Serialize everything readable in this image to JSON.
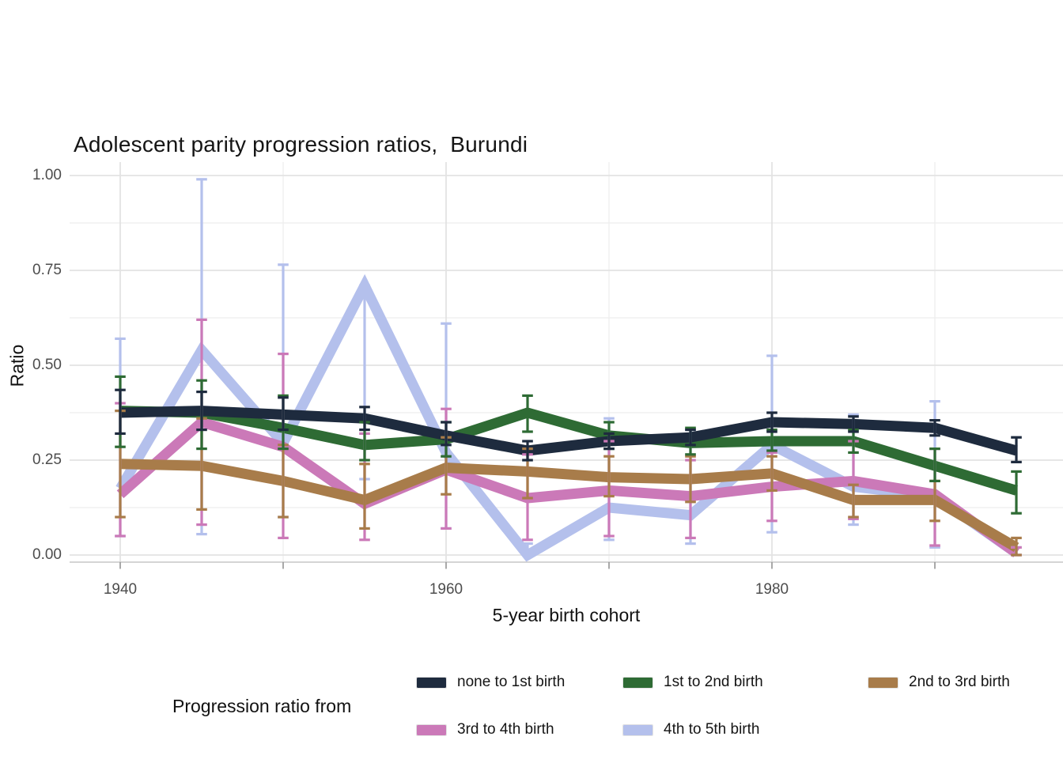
{
  "chart_data": {
    "type": "line",
    "title": "Adolescent parity progression ratios,  Burundi",
    "xlabel": "5-year birth cohort",
    "ylabel": "Ratio",
    "legend_title": "Progression ratio from",
    "legend_position": "bottom",
    "grid": true,
    "error_bars": true,
    "x": [
      1940,
      1945,
      1950,
      1955,
      1960,
      1965,
      1970,
      1975,
      1980,
      1985,
      1990,
      1995
    ],
    "x_tick_label_years": [
      1940,
      1960,
      1980
    ],
    "x_tick_labels": [
      "1940",
      "1960",
      "1980"
    ],
    "x_minor_gridline_years": [
      1950,
      1970,
      1990
    ],
    "x_axis_tick_years": [
      1940,
      1950,
      1960,
      1970,
      1980,
      1990
    ],
    "xlim": [
      1937,
      1998
    ],
    "y_tick_values": [
      0.0,
      0.25,
      0.5,
      0.75,
      1.0
    ],
    "y_tick_labels": [
      "0.00",
      "0.25",
      "0.50",
      "0.75",
      "1.00"
    ],
    "y_minor_gridline_values": [
      0.125,
      0.375,
      0.625,
      0.875
    ],
    "ylim": [
      -0.02,
      1.05
    ],
    "series": [
      {
        "name": "none to 1st birth",
        "color": "#1e2b3e",
        "values": [
          0.375,
          0.38,
          0.37,
          0.36,
          0.315,
          0.275,
          0.3,
          0.31,
          0.35,
          0.345,
          0.335,
          0.275
        ],
        "ci_low": [
          0.32,
          0.33,
          0.33,
          0.33,
          0.29,
          0.25,
          0.28,
          0.29,
          0.325,
          0.325,
          0.315,
          0.245
        ],
        "ci_high": [
          0.435,
          0.43,
          0.415,
          0.39,
          0.35,
          0.3,
          0.32,
          0.33,
          0.375,
          0.365,
          0.355,
          0.31
        ]
      },
      {
        "name": "1st to 2nd birth",
        "color": "#2e6b34",
        "values": [
          0.38,
          0.375,
          0.335,
          0.29,
          0.305,
          0.375,
          0.315,
          0.295,
          0.3,
          0.3,
          0.235,
          0.17
        ],
        "ci_low": [
          0.285,
          0.28,
          0.28,
          0.25,
          0.26,
          0.325,
          0.28,
          0.265,
          0.275,
          0.27,
          0.195,
          0.11
        ],
        "ci_high": [
          0.47,
          0.46,
          0.42,
          0.35,
          0.35,
          0.42,
          0.35,
          0.335,
          0.33,
          0.33,
          0.28,
          0.22
        ]
      },
      {
        "name": "2nd to 3rd birth",
        "color": "#a87c4a",
        "values": [
          0.24,
          0.235,
          0.195,
          0.145,
          0.23,
          0.22,
          0.205,
          0.2,
          0.215,
          0.145,
          0.145,
          0.02
        ],
        "ci_low": [
          0.1,
          0.12,
          0.1,
          0.07,
          0.16,
          0.15,
          0.155,
          0.14,
          0.17,
          0.1,
          0.09,
          0.0
        ],
        "ci_high": [
          0.38,
          0.36,
          0.29,
          0.24,
          0.31,
          0.28,
          0.26,
          0.26,
          0.26,
          0.185,
          0.195,
          0.045
        ]
      },
      {
        "name": "3rd to 4th birth",
        "color": "#cb79b8",
        "values": [
          0.16,
          0.35,
          0.285,
          0.135,
          0.225,
          0.15,
          0.17,
          0.155,
          0.18,
          0.195,
          0.16,
          0.005
        ],
        "ci_low": [
          0.05,
          0.08,
          0.045,
          0.04,
          0.07,
          0.04,
          0.05,
          0.045,
          0.09,
          0.095,
          0.025,
          0.0
        ],
        "ci_high": [
          0.4,
          0.62,
          0.53,
          0.32,
          0.385,
          0.265,
          0.3,
          0.25,
          0.27,
          0.3,
          0.28,
          0.02
        ]
      },
      {
        "name": "4th to 5th birth",
        "color": "#b4c0ec",
        "values": [
          0.175,
          0.54,
          0.295,
          0.71,
          0.27,
          0.0,
          0.125,
          0.105,
          0.29,
          0.18,
          0.155,
          0.005
        ],
        "ci_low": [
          0.05,
          0.055,
          0.1,
          0.2,
          0.07,
          0.0,
          0.04,
          0.03,
          0.06,
          0.08,
          0.02,
          0.0
        ],
        "ci_high": [
          0.57,
          0.99,
          0.765,
          0.71,
          0.61,
          0.03,
          0.36,
          0.33,
          0.525,
          0.37,
          0.405,
          0.02
        ]
      }
    ]
  }
}
